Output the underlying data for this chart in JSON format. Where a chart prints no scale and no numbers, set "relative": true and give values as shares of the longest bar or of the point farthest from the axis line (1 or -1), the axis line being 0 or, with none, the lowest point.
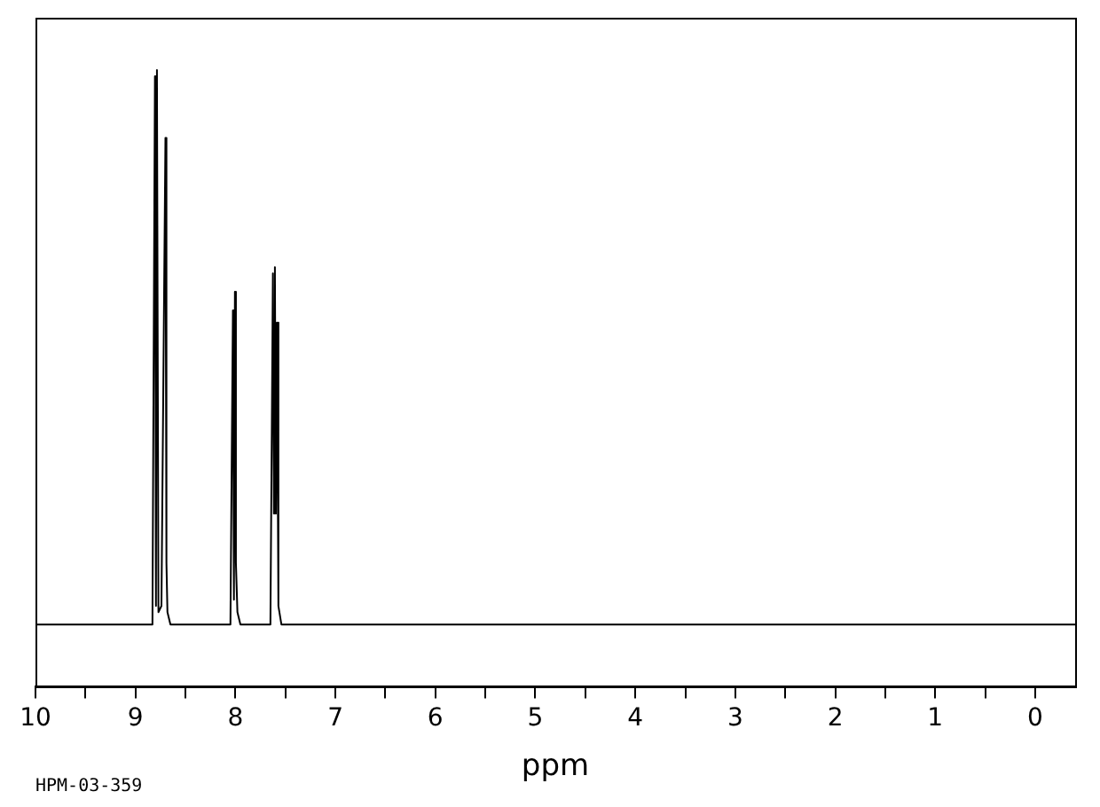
{
  "chart_data": {
    "type": "line",
    "xlabel": "ppm",
    "annotations": [
      "HPM-03-359"
    ],
    "relative": true,
    "color": "#000000",
    "marker": "none",
    "grid": false,
    "legend": false,
    "x": [
      10,
      8.83,
      8.805,
      8.795,
      8.785,
      8.77,
      8.74,
      8.7,
      8.69,
      8.68,
      8.65,
      8.05,
      8.025,
      8.015,
      8.005,
      7.995,
      7.98,
      7.95,
      7.65,
      7.625,
      7.615,
      7.605,
      7.595,
      7.585,
      7.57,
      7.54,
      -0.4
    ],
    "values": [
      0.1,
      0.1,
      0.99,
      0.13,
      1.0,
      0.12,
      0.13,
      0.89,
      0.2,
      0.12,
      0.1,
      0.1,
      0.61,
      0.14,
      0.64,
      0.2,
      0.12,
      0.1,
      0.1,
      0.67,
      0.28,
      0.68,
      0.28,
      0.59,
      0.13,
      0.1,
      0.1
    ],
    "xlim": [
      10,
      -0.4
    ],
    "xticks": [
      10,
      {
        "value": 9.5,
        "label": null
      },
      9,
      {
        "value": 8.5,
        "label": null
      },
      8,
      {
        "value": 7.5,
        "label": null
      },
      7,
      {
        "value": 6.5,
        "label": null
      },
      6,
      {
        "value": 5.5,
        "label": null
      },
      5,
      {
        "value": 4.5,
        "label": null
      },
      4,
      {
        "value": 3.5,
        "label": null
      },
      3,
      {
        "value": 2.5,
        "label": null
      },
      2,
      {
        "value": 1.5,
        "label": null
      },
      1,
      {
        "value": 0.5,
        "label": null
      },
      0
    ]
  }
}
